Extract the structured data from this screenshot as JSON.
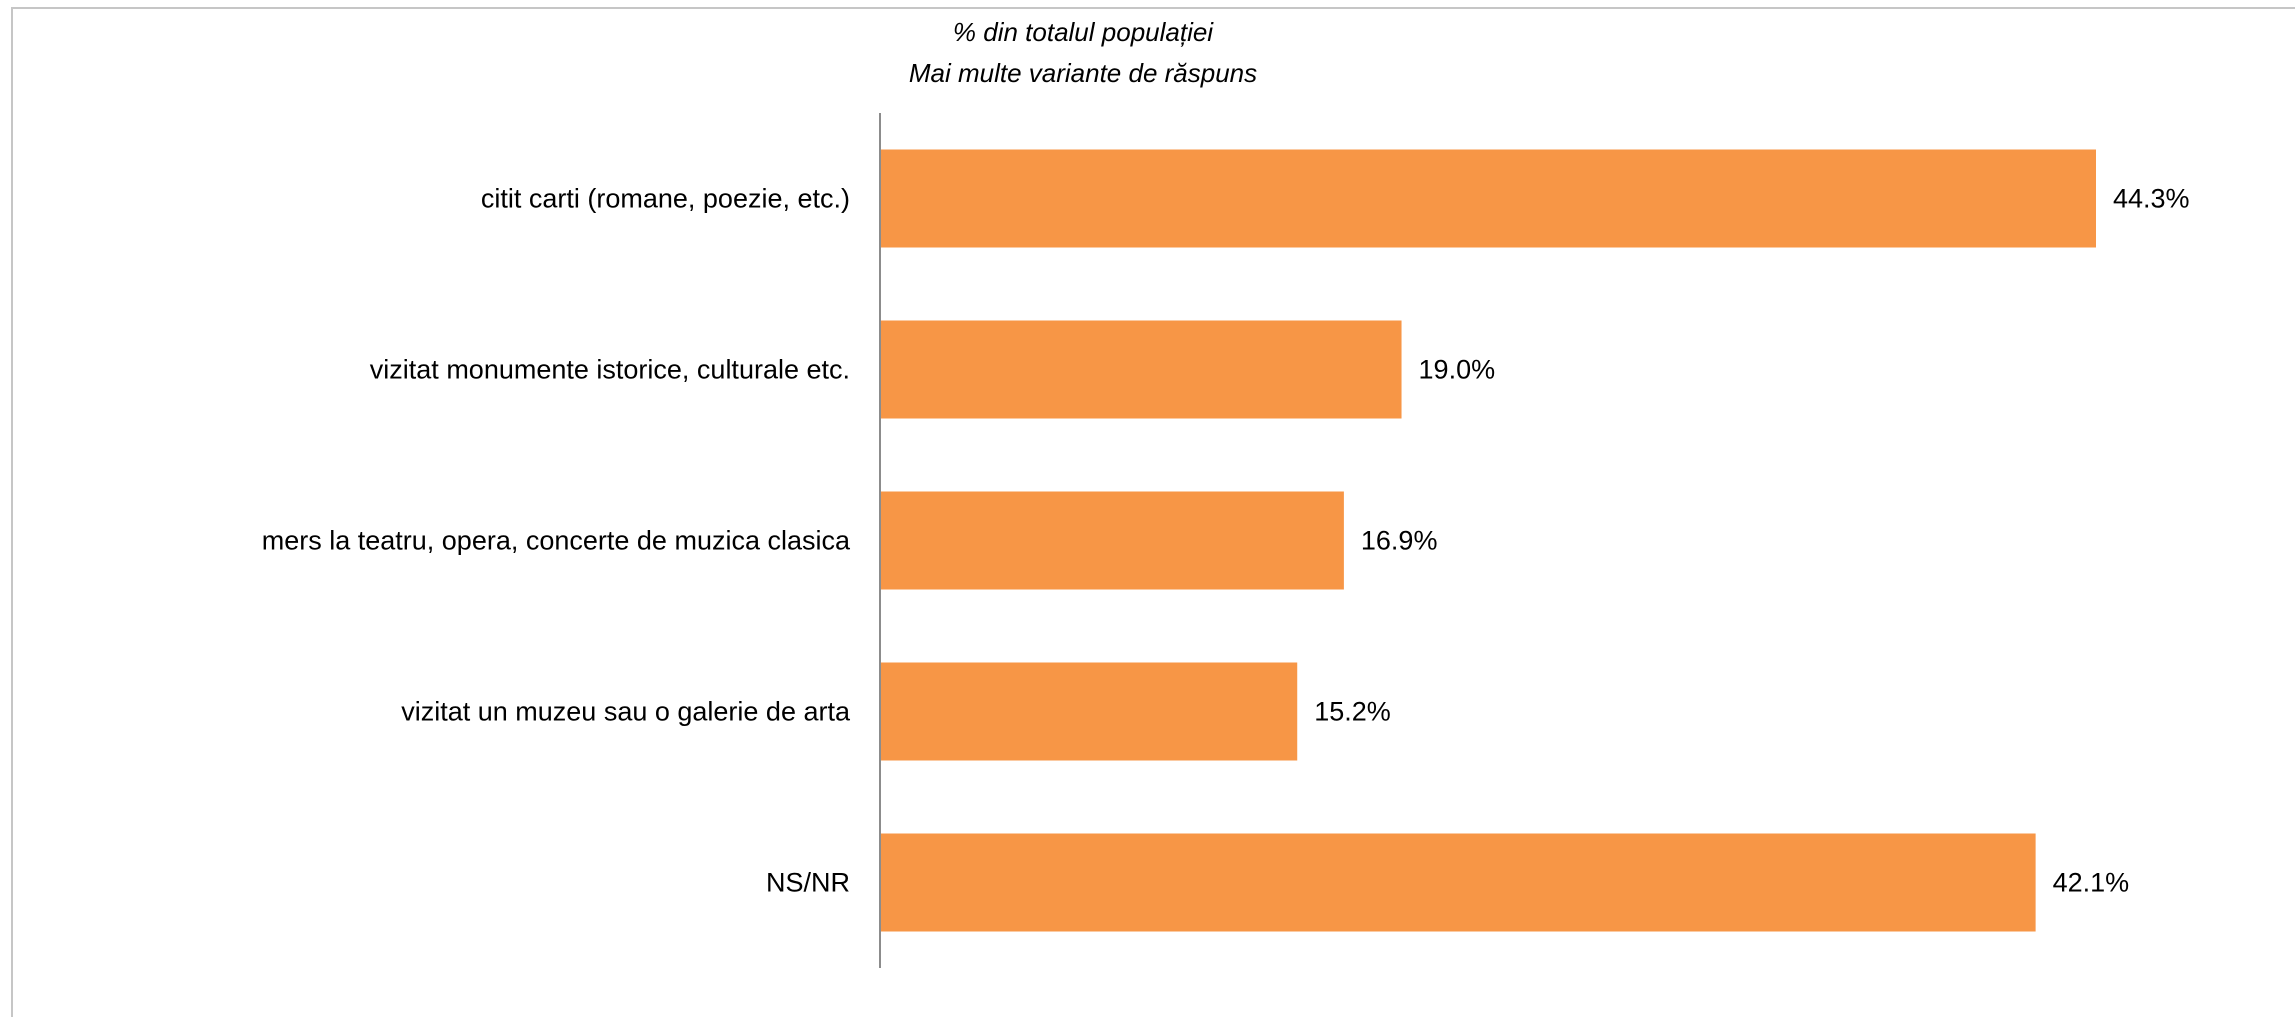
{
  "chart_data": {
    "type": "bar",
    "orientation": "horizontal",
    "title": "",
    "subtitle": [
      "% din totalul populației",
      "Mai multe variante de răspuns"
    ],
    "xlabel": "",
    "ylabel": "",
    "categories": [
      "citit carti (romane, poezie, etc.)",
      "vizitat monumente istorice, culturale etc.",
      "mers la teatru, opera, concerte de muzica clasica",
      "vizitat un muzeu sau o galerie de arta",
      "NS/NR"
    ],
    "values": [
      44.3,
      19.0,
      16.9,
      15.2,
      42.1
    ],
    "value_labels": [
      "44.3%",
      "19.0%",
      "16.9%",
      "15.2%",
      "42.1%"
    ],
    "xlim": [
      0,
      50
    ],
    "grid": false,
    "legend": "none",
    "bar_color": "#f79646",
    "axis_color": "#8c8c8c"
  }
}
